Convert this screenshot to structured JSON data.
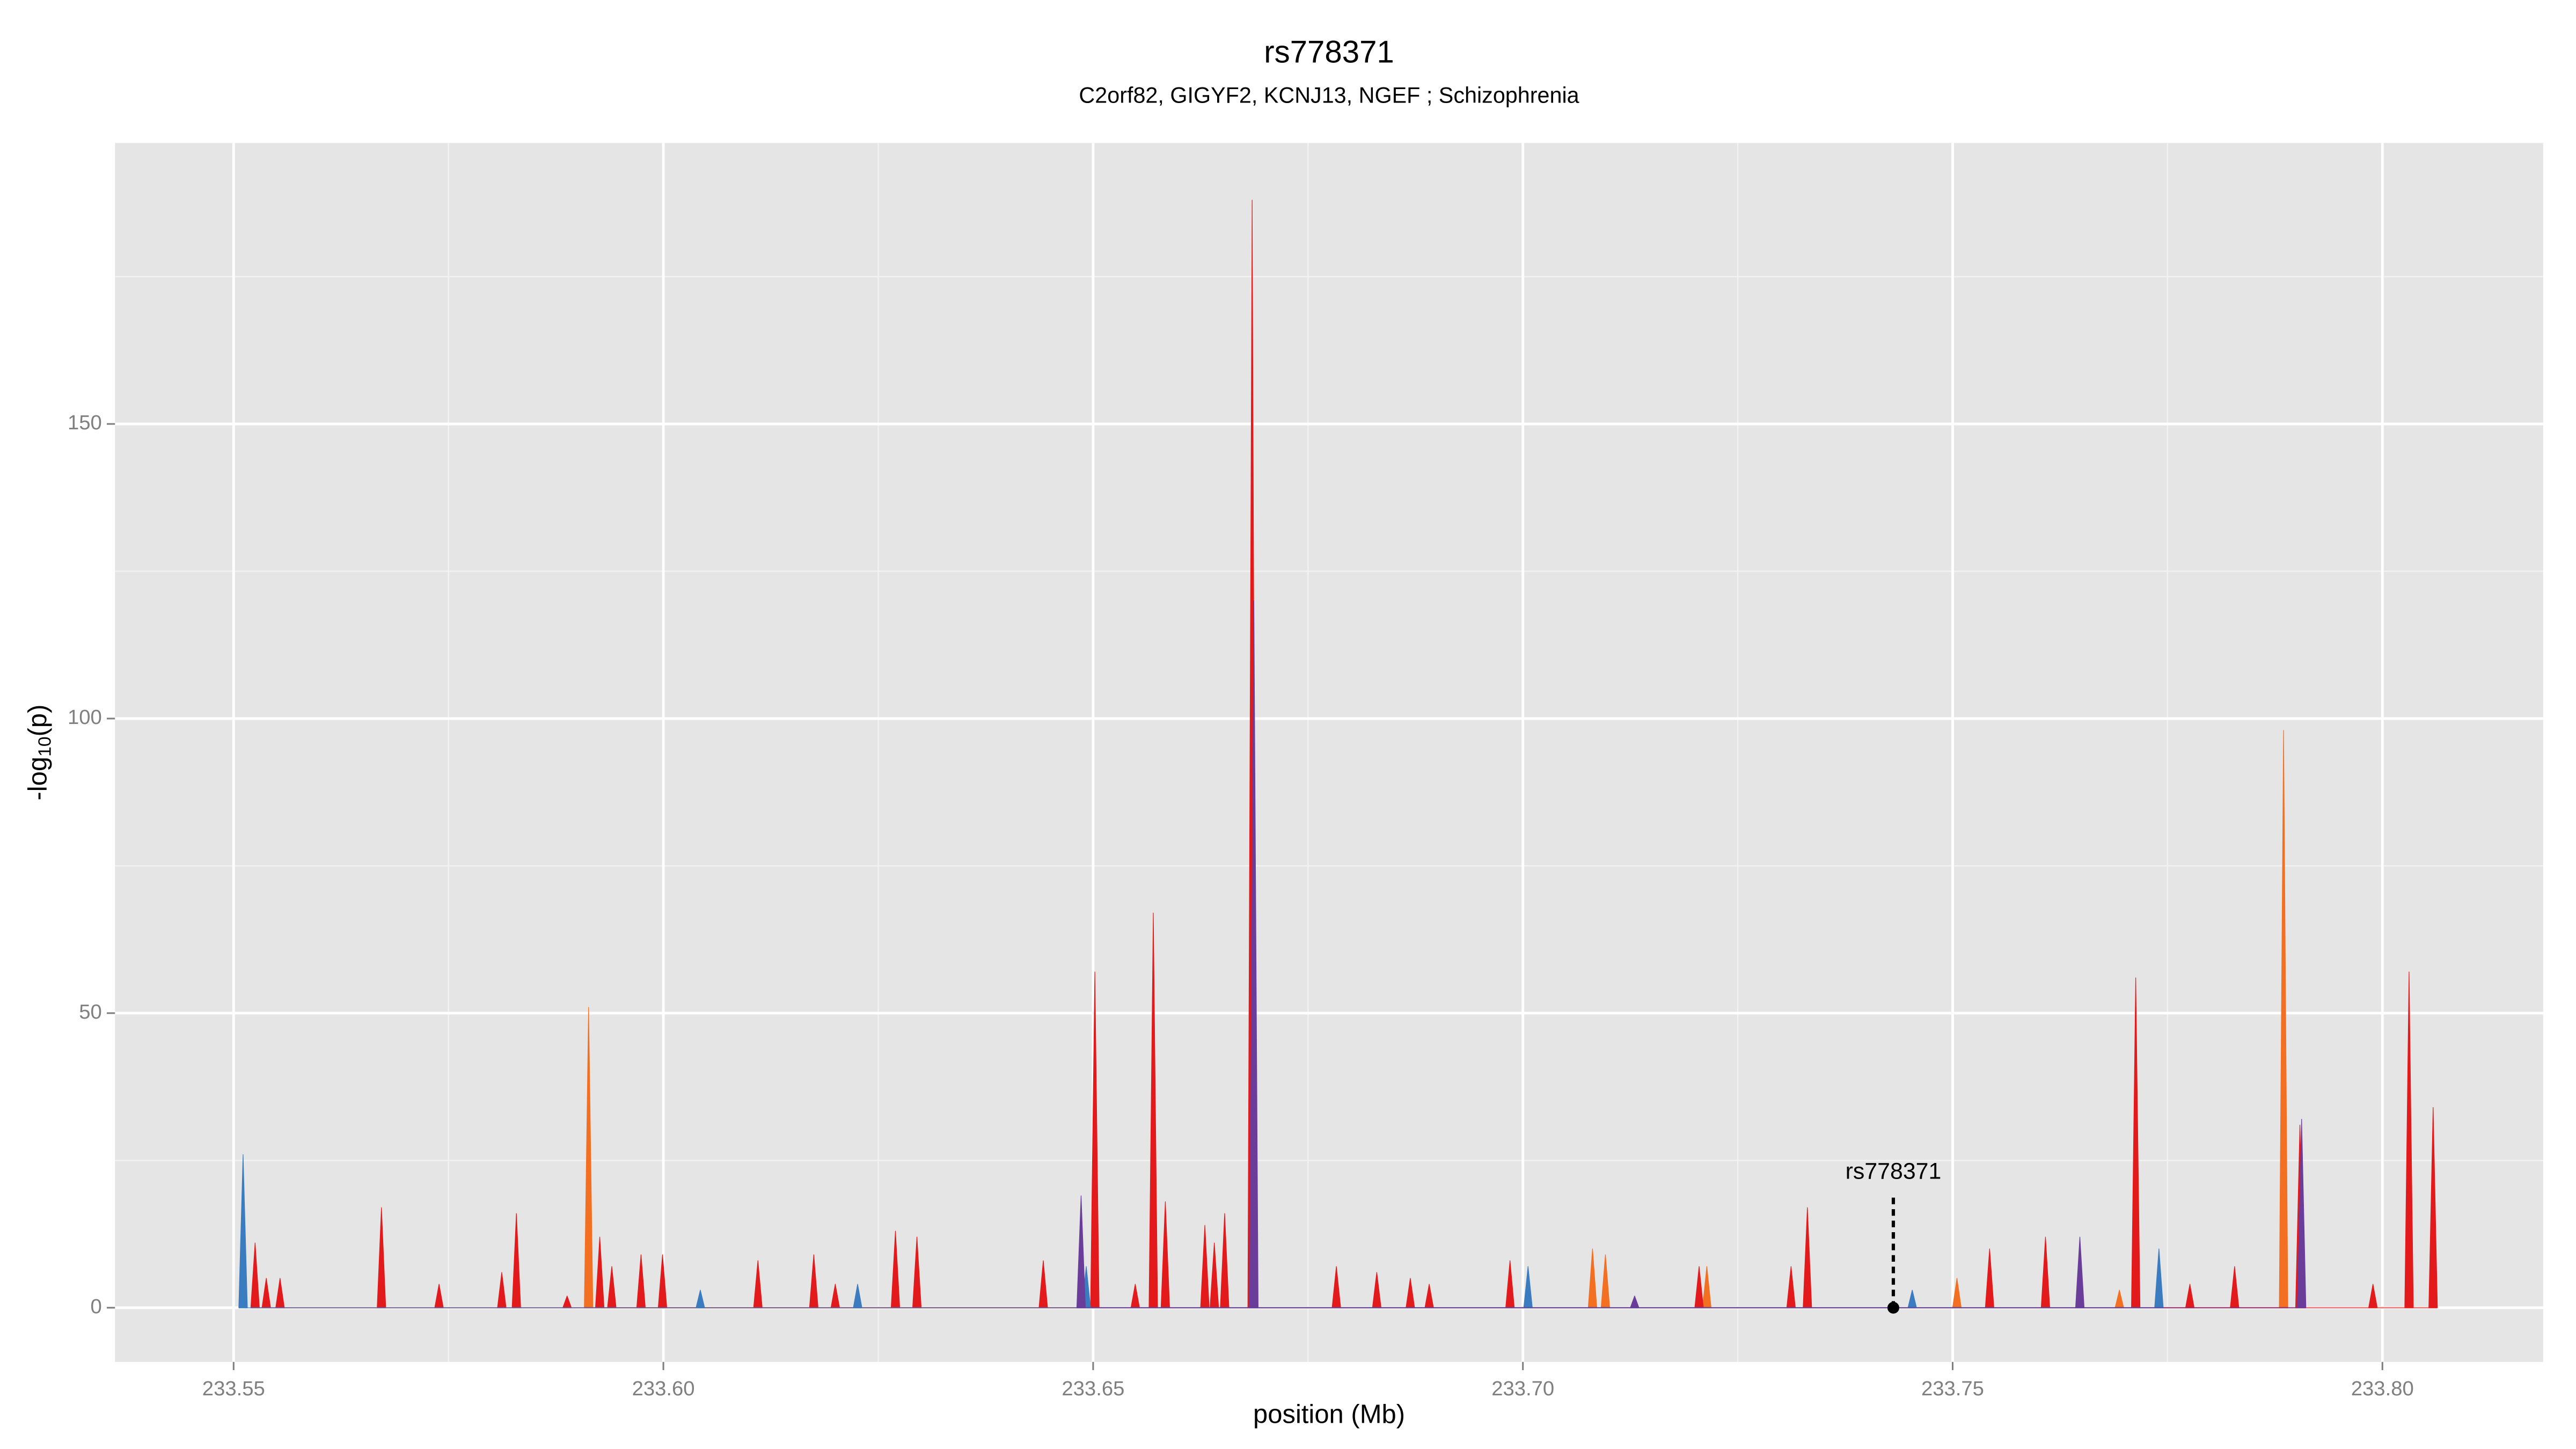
{
  "chart_data": {
    "type": "area",
    "title": "rs778371",
    "subtitle": "C2orf82, GIGYF2, KCNJ13, NGEF ; Schizophrenia",
    "xlabel": "position (Mb)",
    "ylabel": [
      "-log",
      "10",
      "(p)"
    ],
    "xlim": [
      233.5362,
      233.8187
    ],
    "ylim": [
      -9.2,
      197.7
    ],
    "xticks": [
      233.55,
      {
        "value": 233.6,
        "label": "233.60"
      },
      233.65,
      {
        "value": 233.7,
        "label": "233.70"
      },
      233.75,
      {
        "value": 233.8,
        "label": "233.80"
      }
    ],
    "yticks": [
      0,
      50,
      100,
      150
    ],
    "xminor": [
      233.575,
      233.625,
      233.675,
      233.725,
      233.775
    ],
    "yminor": [
      25,
      75,
      125,
      175
    ],
    "grid": true,
    "series": [
      {
        "color": "#f36f21",
        "x": [
          233.5913,
          233.7081,
          233.7096,
          233.7214,
          233.7505,
          233.7694,
          233.7885
        ],
        "values": [
          51,
          10,
          9,
          7,
          5,
          3,
          98
        ]
      },
      {
        "color": "#e31a1c",
        "x": [
          233.5525,
          233.5538,
          233.5554,
          233.5672,
          233.5739,
          233.5812,
          233.5829,
          233.5888,
          233.5926,
          233.594,
          233.5974,
          233.5999,
          233.611,
          233.6175,
          233.62,
          233.627,
          233.6295,
          233.6442,
          233.6502,
          233.6549,
          233.657,
          233.6584,
          233.663,
          233.6641,
          233.6653,
          233.6685,
          233.6783,
          233.683,
          233.6869,
          233.6891,
          233.6985,
          233.7205,
          233.7312,
          233.7331,
          233.7543,
          233.7608,
          233.7713,
          233.7776,
          233.7828,
          233.7904,
          233.7989,
          233.8031,
          233.8059
        ],
        "values": [
          11,
          5,
          5,
          17,
          4,
          6,
          16,
          2,
          12,
          7,
          9,
          9,
          8,
          9,
          4,
          13,
          12,
          8,
          57,
          4,
          67,
          18,
          14,
          11,
          16,
          188,
          7,
          6,
          5,
          4,
          8,
          7,
          7,
          17,
          10,
          12,
          56,
          4,
          7,
          31,
          4,
          57,
          34
        ]
      },
      {
        "color": "#3b7bbf",
        "x": [
          233.5511,
          233.6043,
          233.6226,
          233.6492,
          233.7006,
          233.7453,
          233.774
        ],
        "values": [
          26,
          3,
          4,
          7,
          7,
          3,
          10
        ]
      },
      {
        "color": "#6a3d9a",
        "x": [
          233.6486,
          233.6687,
          233.713,
          233.7648,
          233.7906
        ],
        "values": [
          19,
          120,
          2,
          12,
          32
        ]
      }
    ],
    "annotation": {
      "label": "rs778371",
      "x": 233.7431,
      "y": 0,
      "line_top": 19
    }
  }
}
